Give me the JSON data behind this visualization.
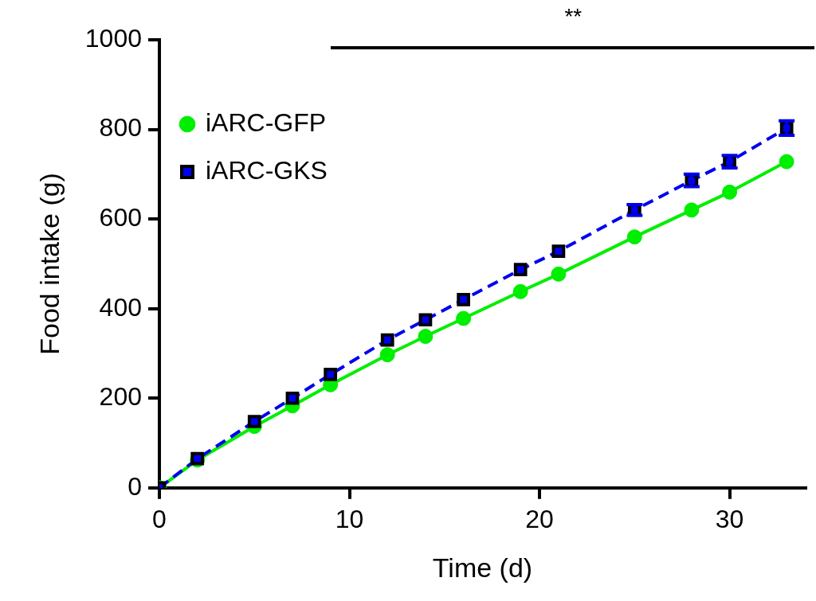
{
  "chart_data": {
    "type": "line",
    "xlabel": "Time (d)",
    "ylabel": "Food intake (g)",
    "xlim": [
      0,
      34
    ],
    "xticks": [
      0,
      10,
      20,
      30
    ],
    "ylim": [
      0,
      1000
    ],
    "yticks": [
      0,
      200,
      400,
      600,
      800,
      1000
    ],
    "grid": false,
    "legend": "top left",
    "annotations": [
      "**"
    ],
    "series": [
      {
        "name": "iARC-GFP",
        "color": "#00ee00",
        "marker": "circle",
        "line_style": "solid",
        "x": [
          0,
          2,
          5,
          7,
          9,
          12,
          14,
          16,
          19,
          21,
          25,
          28,
          30,
          33
        ],
        "values": [
          0,
          62,
          137,
          183,
          230,
          297,
          338,
          378,
          438,
          477,
          560,
          620,
          660,
          728
        ]
      },
      {
        "name": "iARC-GKS",
        "color": "#0000ee",
        "marker": "square",
        "line_style": "dashed",
        "x": [
          0,
          2,
          5,
          7,
          9,
          12,
          14,
          16,
          19,
          21,
          25,
          28,
          30,
          33
        ],
        "values": [
          0,
          65,
          148,
          200,
          253,
          330,
          375,
          420,
          487,
          528,
          620,
          686,
          728,
          803
        ],
        "errors": [
          null,
          null,
          null,
          null,
          null,
          null,
          null,
          null,
          null,
          null,
          12,
          14,
          14,
          16
        ]
      }
    ]
  }
}
